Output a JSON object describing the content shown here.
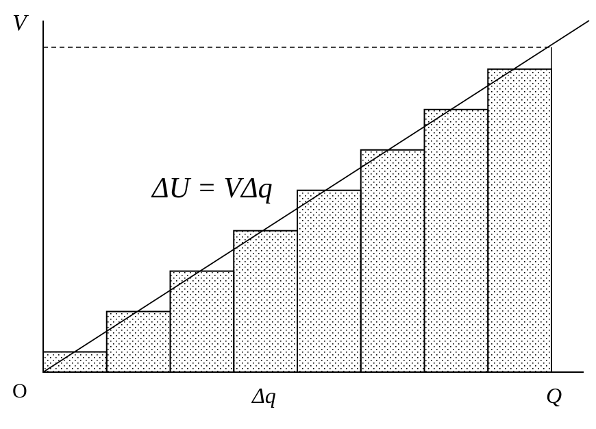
{
  "labels": {
    "y_axis": "V",
    "origin": "O",
    "x_step": "Δq",
    "x_end": "Q",
    "equation": "ΔU = VΔq"
  },
  "steps": 8,
  "colors": {
    "stroke": "#000000",
    "fill": "#ffffff"
  }
}
